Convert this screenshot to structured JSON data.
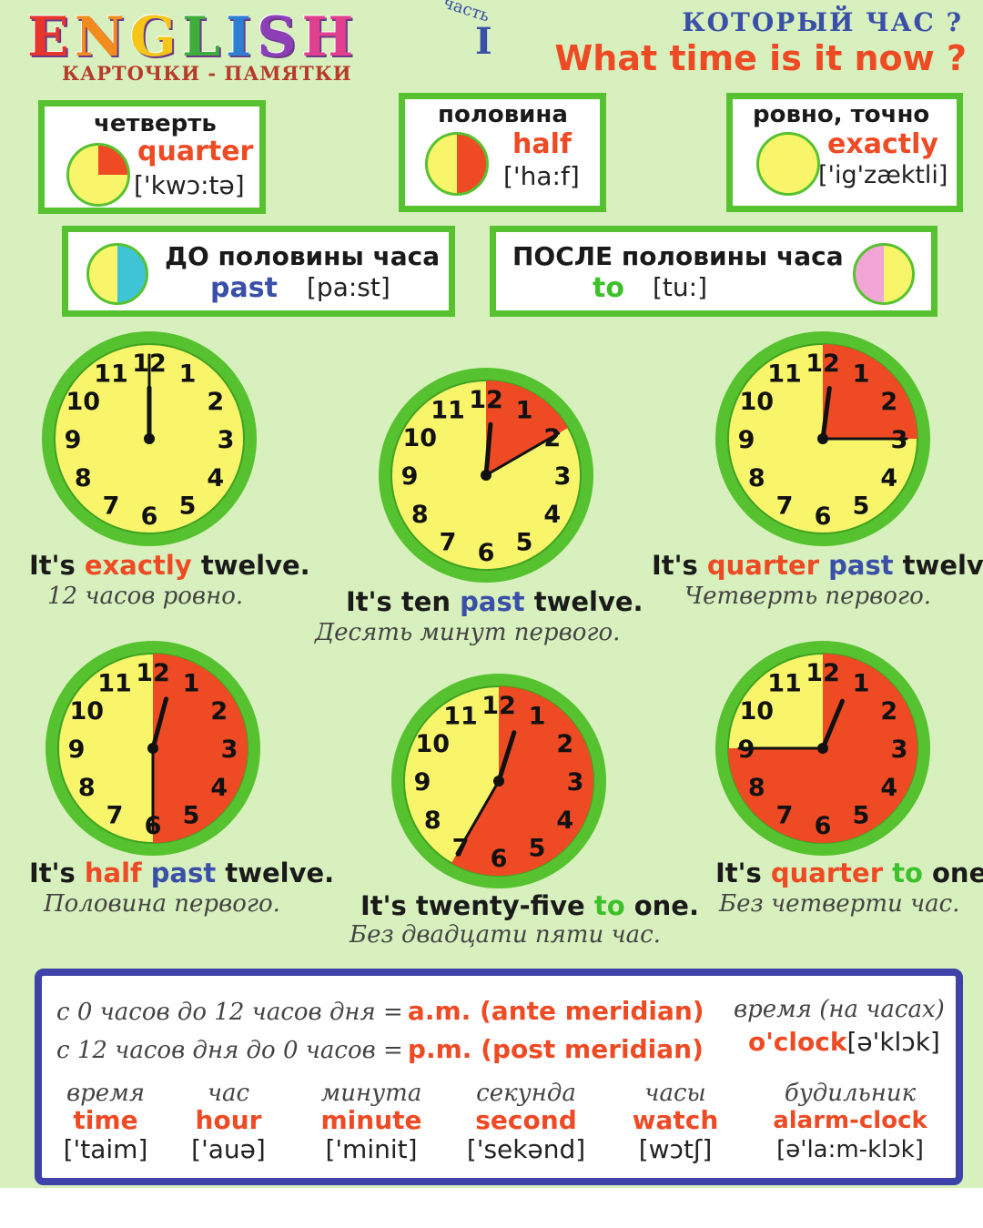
{
  "header": {
    "brand_letters": [
      {
        "ch": "E",
        "color": "#e8352b"
      },
      {
        "ch": "N",
        "color": "#f28c1e"
      },
      {
        "ch": "G",
        "color": "#f5c518"
      },
      {
        "ch": "L",
        "color": "#3dae3a"
      },
      {
        "ch": "I",
        "color": "#2d7fd0"
      },
      {
        "ch": "S",
        "color": "#8d3fb8"
      },
      {
        "ch": "H",
        "color": "#e0408e"
      }
    ],
    "part_label": "часть",
    "part_number": "I",
    "subtitle": "КАРТОЧКИ - ПАМЯТКИ",
    "question_ru": "КОТОРЫЙ ЧАС ?",
    "question_en": "What time is it now ?"
  },
  "cards": {
    "quarter": {
      "ru": "четверть",
      "en": "quarter",
      "ipa": "['kwɔ:tə]"
    },
    "half": {
      "ru": "половина",
      "en": "half",
      "ipa": "['ha:f]"
    },
    "exactly": {
      "ru": "ровно, точно",
      "en": "exactly",
      "ipa": "['ig'zæktli]"
    },
    "past": {
      "ru": "ДО половины часа",
      "en": "past",
      "ipa": "[pa:st]"
    },
    "to": {
      "ru": "ПОСЛЕ половины часа",
      "en": "to",
      "ipa": "[tu:]"
    }
  },
  "colors": {
    "red": "#ee4a24",
    "blue": "#3a4fa8",
    "green": "#3cc12a",
    "clock_face": "#f8f56a",
    "clock_border": "#57c22f",
    "cyan": "#3ec4d4",
    "pink": "#f2a6d8"
  },
  "clocks": [
    {
      "time": "12:00",
      "sector": [
        0,
        0
      ],
      "parts": [
        {
          "t": "It's "
        },
        {
          "t": "exactly",
          "c": "red"
        },
        {
          "t": " twelve."
        }
      ],
      "ru": "12 часов ровно."
    },
    {
      "time": "12:10",
      "sector": [
        0,
        10
      ],
      "parts": [
        {
          "t": "It's ten "
        },
        {
          "t": "past",
          "c": "blue"
        },
        {
          "t": " twelve."
        }
      ],
      "ru": "Десять минут первого."
    },
    {
      "time": "12:15",
      "sector": [
        0,
        15
      ],
      "parts": [
        {
          "t": "It's "
        },
        {
          "t": "quarter",
          "c": "red"
        },
        {
          "t": " "
        },
        {
          "t": "past",
          "c": "blue"
        },
        {
          "t": " twelve."
        }
      ],
      "ru": "Четверть первого."
    },
    {
      "time": "12:30",
      "sector": [
        0,
        30
      ],
      "parts": [
        {
          "t": "It's "
        },
        {
          "t": "half",
          "c": "red"
        },
        {
          "t": " "
        },
        {
          "t": "past",
          "c": "blue"
        },
        {
          "t": " twelve."
        }
      ],
      "ru": "Половина первого."
    },
    {
      "time": "12:35",
      "sector": [
        0,
        35
      ],
      "parts": [
        {
          "t": "It's twenty-five "
        },
        {
          "t": "to",
          "c": "green"
        },
        {
          "t": " one."
        }
      ],
      "ru": "Без двадцати пяти час."
    },
    {
      "time": "12:45",
      "sector": [
        0,
        45
      ],
      "parts": [
        {
          "t": "It's "
        },
        {
          "t": "quarter",
          "c": "red"
        },
        {
          "t": " "
        },
        {
          "t": "to",
          "c": "green"
        },
        {
          "t": " one."
        }
      ],
      "ru": "Без четверти час."
    }
  ],
  "bottom": {
    "am_ru": "с 0 часов до 12 часов дня =",
    "am_en": "a.m. (ante meridian)",
    "pm_ru": "с 12 часов дня до 0 часов =",
    "pm_en": "p.m. (post meridian)",
    "oclock_ru": "время (на часах)",
    "oclock_en": "o'clock",
    "oclock_ipa": "[ə'klɔk]",
    "vocab": [
      {
        "ru": "время",
        "en": "time",
        "ipa": "['taim]"
      },
      {
        "ru": "час",
        "en": "hour",
        "ipa": "['auə]"
      },
      {
        "ru": "минута",
        "en": "minute",
        "ipa": "['minit]"
      },
      {
        "ru": "секунда",
        "en": "second",
        "ipa": "['sekənd]"
      },
      {
        "ru": "часы",
        "en": "watch",
        "ipa": "[wɔtʃ]"
      },
      {
        "ru": "будильник",
        "en": "alarm-clock",
        "ipa": "[ə'la:m-klɔk]"
      }
    ]
  }
}
